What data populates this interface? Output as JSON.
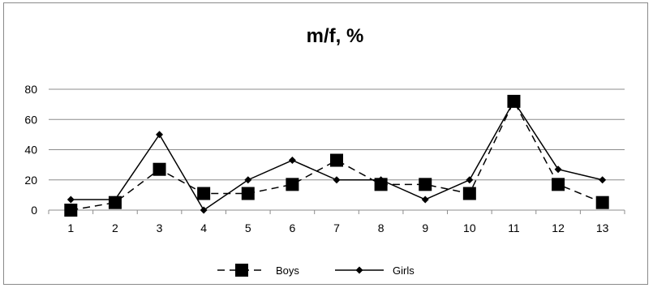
{
  "chart_data": {
    "type": "line",
    "title": "m/f, %",
    "xlabel": "",
    "ylabel": "",
    "x": [
      1,
      2,
      3,
      4,
      5,
      6,
      7,
      8,
      9,
      10,
      11,
      12,
      13
    ],
    "x_tick_labels": [
      "1",
      "2",
      "3",
      "4",
      "5",
      "6",
      "7",
      "8",
      "9",
      "10",
      "11",
      "12",
      "13"
    ],
    "ylim": [
      0,
      80
    ],
    "y_ticks": [
      0,
      20,
      40,
      60,
      80
    ],
    "y_tick_labels": [
      "0",
      "20",
      "40",
      "60",
      "80"
    ],
    "grid": "horizontal",
    "legend_position": "bottom",
    "series": [
      {
        "name": "Boys",
        "line_style": "dashed",
        "marker": "square",
        "color": "#000000",
        "values": [
          0,
          5,
          27,
          11,
          11,
          17,
          33,
          17,
          17,
          11,
          72,
          17,
          5
        ]
      },
      {
        "name": "Girls",
        "line_style": "solid",
        "marker": "diamond",
        "color": "#000000",
        "values": [
          7,
          7,
          50,
          0,
          20,
          33,
          20,
          20,
          7,
          20,
          72,
          27,
          20
        ]
      }
    ]
  }
}
